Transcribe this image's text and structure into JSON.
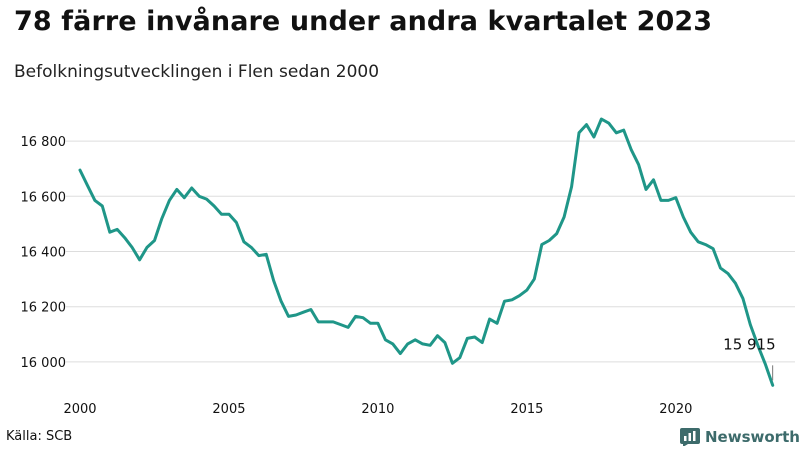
{
  "header": {
    "title": "78 färre invånare under andra kvartalet 2023",
    "subtitle": "Befolkningsutvecklingen i Flen sedan 2000"
  },
  "footer": {
    "source": "Källa: SCB",
    "brand": "Newsworthy",
    "brand_icon": "bar-chart-logo-icon"
  },
  "colors": {
    "line": "#1f9688",
    "grid": "#dddddd",
    "brand": "#3d6b6b"
  },
  "chart_data": {
    "type": "line",
    "x_ticks": [
      2000,
      2005,
      2010,
      2015,
      2020
    ],
    "y_ticks": [
      16000,
      16200,
      16400,
      16600,
      16800
    ],
    "y_tick_labels": [
      "16 000",
      "16 200",
      "16 400",
      "16 600",
      "16 800"
    ],
    "xlim": [
      2000,
      2024
    ],
    "ylim": [
      15880,
      16920
    ],
    "grid": "horizontal",
    "annotation": {
      "text": "15 915",
      "x": 2023.25,
      "y": 15915
    },
    "series": [
      {
        "x": [
          2000.0,
          2000.25,
          2000.5,
          2000.75,
          2001.0,
          2001.25,
          2001.5,
          2001.75,
          2002.0,
          2002.25,
          2002.5,
          2002.75,
          2003.0,
          2003.25,
          2003.5,
          2003.75,
          2004.0,
          2004.25,
          2004.5,
          2004.75,
          2005.0,
          2005.25,
          2005.5,
          2005.75,
          2006.0,
          2006.25,
          2006.5,
          2006.75,
          2007.0,
          2007.25,
          2007.5,
          2007.75,
          2008.0,
          2008.25,
          2008.5,
          2008.75,
          2009.0,
          2009.25,
          2009.5,
          2009.75,
          2010.0,
          2010.25,
          2010.5,
          2010.75,
          2011.0,
          2011.25,
          2011.5,
          2011.75,
          2012.0,
          2012.25,
          2012.5,
          2012.75,
          2013.0,
          2013.25,
          2013.5,
          2013.75,
          2014.0,
          2014.25,
          2014.5,
          2014.75,
          2015.0,
          2015.25,
          2015.5,
          2015.75,
          2016.0,
          2016.25,
          2016.5,
          2016.75,
          2017.0,
          2017.25,
          2017.5,
          2017.75,
          2018.0,
          2018.25,
          2018.5,
          2018.75,
          2019.0,
          2019.25,
          2019.5,
          2019.75,
          2020.0,
          2020.25,
          2020.5,
          2020.75,
          2021.0,
          2021.25,
          2021.5,
          2021.75,
          2022.0,
          2022.25,
          2022.5,
          2022.75,
          2023.0,
          2023.25
        ],
        "values": [
          16695,
          16640,
          16585,
          16565,
          16470,
          16480,
          16450,
          16415,
          16370,
          16415,
          16440,
          16520,
          16585,
          16625,
          16595,
          16630,
          16600,
          16590,
          16565,
          16535,
          16535,
          16505,
          16435,
          16415,
          16385,
          16390,
          16295,
          16220,
          16165,
          16170,
          16180,
          16190,
          16145,
          16145,
          16145,
          16135,
          16125,
          16165,
          16160,
          16140,
          16140,
          16080,
          16065,
          16030,
          16065,
          16080,
          16065,
          16060,
          16095,
          16070,
          15995,
          16015,
          16085,
          16090,
          16070,
          16155,
          16140,
          16220,
          16225,
          16240,
          16260,
          16300,
          16425,
          16440,
          16465,
          16525,
          16635,
          16830,
          16860,
          16815,
          16880,
          16865,
          16830,
          16840,
          16770,
          16715,
          16625,
          16660,
          16585,
          16585,
          16595,
          16525,
          16470,
          16435,
          16425,
          16410,
          16340,
          16320,
          16285,
          16230,
          16135,
          16060,
          15993,
          15915
        ]
      }
    ]
  }
}
